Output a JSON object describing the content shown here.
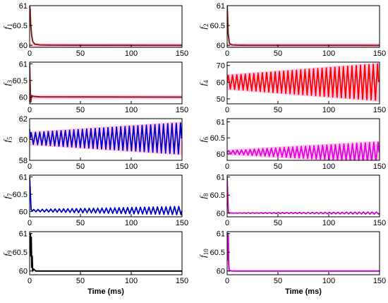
{
  "chart_data": [
    {
      "type": "line",
      "ylabel": "f1",
      "ylabel_main": "f",
      "ylabel_sub": "1",
      "xlabel": "",
      "xlim": [
        0,
        150
      ],
      "ylim": [
        59.95,
        61
      ],
      "yticks": [
        "60",
        "60.5",
        "61"
      ],
      "xticks": [
        "0",
        "50",
        "100",
        "150"
      ],
      "grid": false,
      "color": "#8B1A1A",
      "band_color": "#FF99CC",
      "series": [
        {
          "x": [
            0,
            0.5,
            1,
            2,
            3,
            5,
            10,
            20,
            150
          ],
          "y": [
            61,
            60.9,
            60.55,
            60.25,
            60.1,
            60.03,
            60.01,
            60.005,
            60.0
          ]
        }
      ]
    },
    {
      "type": "line",
      "ylabel": "f2",
      "ylabel_main": "f",
      "ylabel_sub": "2",
      "xlabel": "",
      "xlim": [
        0,
        150
      ],
      "ylim": [
        59.95,
        61
      ],
      "yticks": [
        "60",
        "60.5",
        "61"
      ],
      "xticks": [
        "0",
        "50",
        "100",
        "150"
      ],
      "grid": false,
      "color": "#8B1A1A",
      "band_color": "#FF99CC",
      "series": [
        {
          "x": [
            0,
            0.5,
            1,
            2,
            3,
            5,
            10,
            20,
            150
          ],
          "y": [
            61,
            60.7,
            60.3,
            60.08,
            60.03,
            60.01,
            60.005,
            60.002,
            60.0
          ]
        }
      ]
    },
    {
      "type": "line",
      "ylabel": "f3",
      "ylabel_main": "f",
      "ylabel_sub": "3",
      "xlabel": "",
      "xlim": [
        0,
        150
      ],
      "ylim": [
        59.8,
        61.05
      ],
      "yticks": [
        "60",
        "60.5",
        "61"
      ],
      "xticks": [
        "0",
        "50",
        "100",
        "150"
      ],
      "grid": false,
      "color": "#8B1A1A",
      "band_color": "#FF99CC",
      "series": [
        {
          "x": [
            0,
            0.5,
            1,
            2,
            3,
            5,
            10,
            150
          ],
          "y": [
            61,
            60.4,
            59.85,
            60.05,
            60.03,
            60.02,
            60.01,
            60.0
          ]
        }
      ]
    },
    {
      "type": "line",
      "ylabel": "f4",
      "ylabel_main": "f",
      "ylabel_sub": "4",
      "xlabel": "",
      "xlim": [
        0,
        150
      ],
      "ylim": [
        47,
        72
      ],
      "yticks": [
        "50",
        "60",
        "70"
      ],
      "xticks": [
        "0",
        "50",
        "100",
        "150"
      ],
      "grid": false,
      "color": "#FF0000",
      "band_color": "#FF99CC",
      "oscillation": {
        "center": 60,
        "amp_start": 4,
        "amp_end": 11,
        "period": 4.2
      }
    },
    {
      "type": "line",
      "ylabel": "f5",
      "ylabel_main": "f",
      "ylabel_sub": "5",
      "xlabel": "",
      "xlim": [
        0,
        150
      ],
      "ylim": [
        58,
        62
      ],
      "yticks": [
        "58",
        "60",
        "62"
      ],
      "xticks": [
        "0",
        "50",
        "100",
        "150"
      ],
      "grid": false,
      "color": "#0000CC",
      "band_color": "#FF99CC",
      "oscillation": {
        "center": 60.1,
        "amp_start": 0.55,
        "amp_end": 1.5,
        "period": 4.2,
        "start": [
          0,
          61.0
        ]
      }
    },
    {
      "type": "line",
      "ylabel": "f6",
      "ylabel_main": "f",
      "ylabel_sub": "6",
      "xlabel": "",
      "xlim": [
        0,
        150
      ],
      "ylim": [
        59.8,
        61.1
      ],
      "yticks": [
        "60",
        "60.5",
        "61"
      ],
      "xticks": [
        "0",
        "50",
        "100",
        "150"
      ],
      "grid": false,
      "color": "#E600E6",
      "band_color": "#FF99CC",
      "oscillation": {
        "center": 60.05,
        "amp_start": 0.05,
        "amp_end": 0.32,
        "period": 4.2,
        "start": [
          0,
          60.1
        ]
      }
    },
    {
      "type": "line",
      "ylabel": "f7",
      "ylabel_main": "f",
      "ylabel_sub": "7",
      "xlabel": "",
      "xlim": [
        0,
        150
      ],
      "ylim": [
        59.85,
        61.05
      ],
      "yticks": [
        "60",
        "60.5",
        "61"
      ],
      "xticks": [
        "0",
        "50",
        "100",
        "150"
      ],
      "grid": false,
      "color": "#0000CC",
      "oscillation": {
        "center": 60.03,
        "amp_start": 0.03,
        "amp_end": 0.12,
        "period": 4.2,
        "start": [
          0,
          61.0
        ],
        "settle": [
          [
            1.5,
            60.05
          ],
          [
            3,
            60.02
          ]
        ]
      }
    },
    {
      "type": "line",
      "ylabel": "f8",
      "ylabel_main": "f",
      "ylabel_sub": "8",
      "xlabel": "",
      "xlim": [
        0,
        150
      ],
      "ylim": [
        59.9,
        61.05
      ],
      "yticks": [
        "60",
        "60.5",
        "61"
      ],
      "xticks": [
        "0",
        "50",
        "100",
        "150"
      ],
      "grid": false,
      "color": "#CC00CC",
      "oscillation": {
        "center": 60.005,
        "amp_start": 0.003,
        "amp_end": 0.03,
        "period": 4.2,
        "start": [
          0,
          61.0
        ],
        "settle": [
          [
            1.2,
            60.02
          ],
          [
            3,
            60.005
          ]
        ]
      }
    },
    {
      "type": "line",
      "ylabel": "f9",
      "ylabel_main": "f",
      "ylabel_sub": "9",
      "xlabel": "Time (ms)",
      "xlim": [
        0,
        150
      ],
      "ylim": [
        59.9,
        61.05
      ],
      "yticks": [
        "60",
        "60.5",
        "61"
      ],
      "xticks": [
        "0",
        "50",
        "100",
        "150"
      ],
      "grid": false,
      "color": "#000000",
      "series": [
        {
          "x": [
            0,
            0.4,
            0.8,
            1.2,
            1.6,
            2,
            2.5,
            3,
            4,
            6,
            150
          ],
          "y": [
            61,
            60.6,
            61.0,
            60.4,
            60.9,
            60.1,
            60.4,
            60.0,
            60.05,
            60.0,
            60.0
          ]
        }
      ]
    },
    {
      "type": "line",
      "ylabel": "f10",
      "ylabel_main": "f",
      "ylabel_sub": "10",
      "xlabel": "Time (ms)",
      "xlim": [
        0,
        150
      ],
      "ylim": [
        59.9,
        61.05
      ],
      "yticks": [
        "60",
        "60.5",
        "61"
      ],
      "xticks": [
        "0",
        "50",
        "100",
        "150"
      ],
      "grid": false,
      "color": "#CC00CC",
      "series": [
        {
          "x": [
            0,
            0.5,
            1,
            1.5,
            2,
            3,
            5,
            150
          ],
          "y": [
            61,
            60.3,
            61.0,
            60.2,
            60.0,
            60.01,
            60.0,
            60.0
          ]
        }
      ]
    }
  ]
}
